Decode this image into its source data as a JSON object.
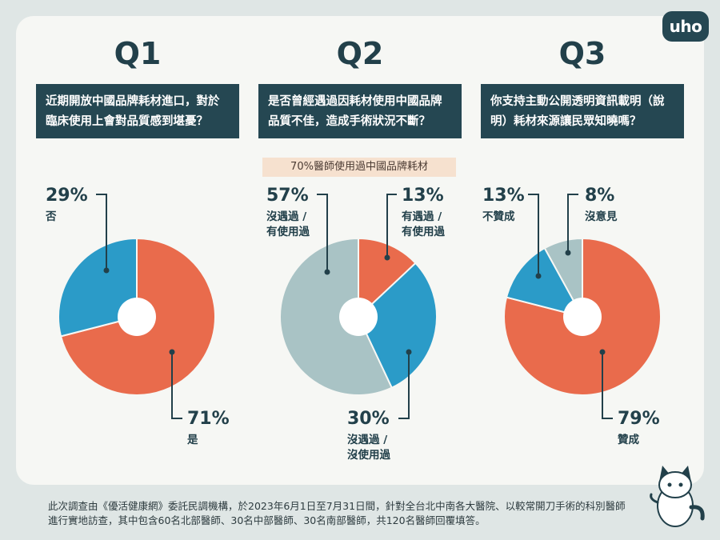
{
  "brand": {
    "logo_text": "uho"
  },
  "questions": [
    {
      "title": "Q1",
      "text_line1": "近期開放中國品牌耗材進口，對於",
      "text_line2": "臨床使用上會對品質感到堪憂？"
    },
    {
      "title": "Q2",
      "text_line1": "是否曾經遇過因耗材使用中國品牌",
      "text_line2": "品質不佳，造成手術狀況不斷？"
    },
    {
      "title": "Q3",
      "text_line1": "你支持主動公開透明資訊載明（說",
      "text_line2": "明）耗材來源讓民眾知曉嗎？"
    }
  ],
  "q2_note": "70%醫師使用過中國品牌耗材",
  "colors": {
    "orange": "#e96b4c",
    "blue": "#2b9bc8",
    "grey": "#a9c3c5",
    "navy": "#254752"
  },
  "chart_data": [
    {
      "type": "pie",
      "title": "Q1",
      "slices": [
        {
          "label": "是",
          "value": 71,
          "value_text": "71%",
          "color": "#e96b4c"
        },
        {
          "label": "否",
          "value": 29,
          "value_text": "29%",
          "color": "#2b9bc8"
        }
      ]
    },
    {
      "type": "pie",
      "title": "Q2",
      "slices": [
        {
          "label_line1": "有遇過 /",
          "label_line2": "有使用過",
          "value": 13,
          "value_text": "13%",
          "color": "#e96b4c"
        },
        {
          "label_line1": "沒遇過 /",
          "label_line2": "沒使用過",
          "value": 30,
          "value_text": "30%",
          "color": "#2b9bc8"
        },
        {
          "label_line1": "沒遇過 /",
          "label_line2": "有使用過",
          "value": 57,
          "value_text": "57%",
          "color": "#a9c3c5"
        }
      ]
    },
    {
      "type": "pie",
      "title": "Q3",
      "slices": [
        {
          "label": "贊成",
          "value": 79,
          "value_text": "79%",
          "color": "#e96b4c"
        },
        {
          "label": "不贊成",
          "value": 13,
          "value_text": "13%",
          "color": "#2b9bc8"
        },
        {
          "label": "沒意見",
          "value": 8,
          "value_text": "8%",
          "color": "#a9c3c5"
        }
      ]
    }
  ],
  "footer": {
    "line1": "此次調查由《優活健康網》委託民調機構，於2023年6月1日至7月31日間，針對全台北中南各大醫院、以較常開刀手術的科別醫師",
    "line2": "進行實地訪查，其中包含60名北部醫師、30名中部醫師、30名南部醫師，共120名醫師回覆填答。"
  }
}
